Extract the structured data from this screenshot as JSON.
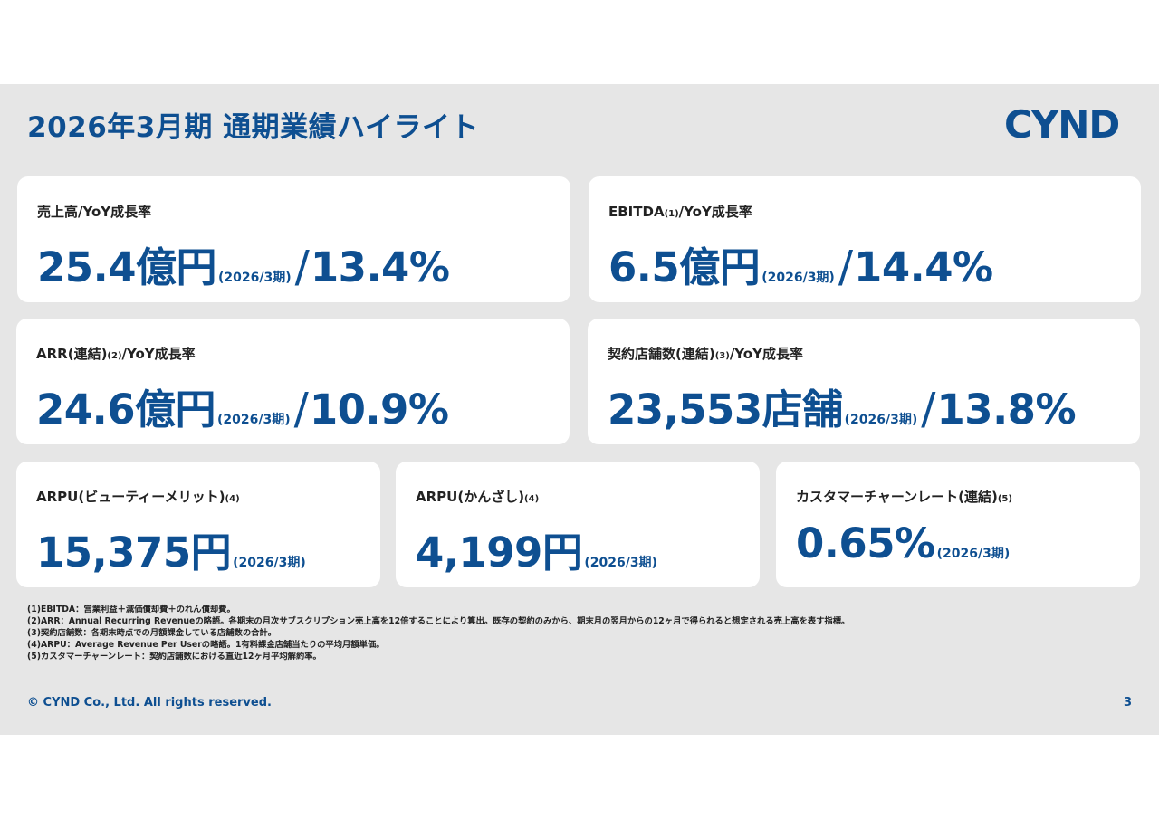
{
  "slide": {
    "title": "2026年3月期 通期業績ハイライト",
    "logo_text": "CYND",
    "accent_color": "#0e4f91",
    "background_color": "#e6e6e6"
  },
  "cards": [
    {
      "label_main": "売上高/YoY成長率",
      "label_note": "",
      "label_suffix": "",
      "value": "25.4億円",
      "period": "(2026/3期)",
      "slash": "/",
      "growth": "13.4%"
    },
    {
      "label_main": "EBITDA",
      "label_note": "(1)",
      "label_suffix": "/YoY成長率",
      "value": "6.5億円",
      "period": "(2026/3期)",
      "slash": "/",
      "growth": "14.4%"
    },
    {
      "label_main": "ARR(連結)",
      "label_note": "(2)",
      "label_suffix": "/YoY成長率",
      "value": "24.6億円",
      "period": "(2026/3期)",
      "slash": "/",
      "growth": "10.9%"
    },
    {
      "label_main": "契約店舗数(連結)",
      "label_note": "(3)",
      "label_suffix": "/YoY成長率",
      "value": "23,553店舗",
      "period": "(2026/3期)",
      "slash": "/",
      "growth": "13.8%"
    },
    {
      "label_main": "ARPU(ビューティーメリット)",
      "label_note": "(4)",
      "label_suffix": "",
      "value": "15,375円",
      "period": "(2026/3期)"
    },
    {
      "label_main": "ARPU(かんざし)",
      "label_note": "(4)",
      "label_suffix": "",
      "value": "4,199円",
      "period": "(2026/3期)"
    },
    {
      "label_main": "カスタマーチャーンレート(連結)",
      "label_note": "(5)",
      "label_suffix": "",
      "value": "0.65%",
      "period": "(2026/3期)"
    }
  ],
  "notes": [
    "(1)EBITDA：営業利益＋減価償却費＋のれん償却費。",
    "(2)ARR：Annual Recurring Revenueの略語。各期末の月次サブスクリプション売上高を12倍することにより算出。既存の契約のみから、期末月の翌月からの12ヶ月で得られると想定される売上高を表す指標。",
    "(3)契約店舗数：各期末時点での月額課金している店舗数の合計。",
    "(4)ARPU：Average Revenue Per Userの略語。1有料課金店舗当たりの平均月額単価。",
    "(5)カスタマーチャーンレート：契約店舗数における直近12ヶ月平均解約率。"
  ],
  "footer": {
    "copyright": "© CYND Co., Ltd. All rights reserved.",
    "page_number": "3"
  }
}
